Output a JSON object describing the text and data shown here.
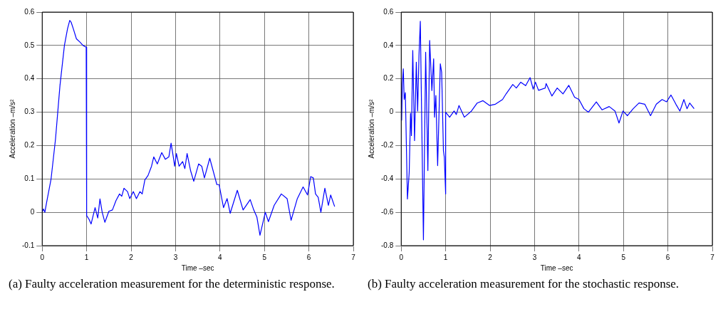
{
  "chart_data": [
    {
      "type": "line",
      "xlabel": "Time –sec",
      "ylabel": "Acceleration –m/s²",
      "annotations": [
        "(a) Faulty acceleration measurement for the deterministic response."
      ],
      "xlim": [
        0,
        7
      ],
      "xticks": [
        0,
        1,
        2,
        3,
        4,
        5,
        6,
        7
      ],
      "ylim": [
        -0.1,
        0.6
      ],
      "yticks": [
        -0.1,
        0,
        0.1,
        0.2,
        0.3,
        0.4,
        0.5,
        0.6
      ],
      "grid": true,
      "line_style": "solid",
      "series": [
        {
          "color": "#0000ff",
          "x": [
            0,
            0.03,
            0.06,
            0.1,
            0.2,
            0.3,
            0.4,
            0.5,
            0.57,
            0.62,
            0.65,
            0.7,
            0.77,
            0.85,
            0.92,
            0.99,
            1.0,
            1.0,
            1.05,
            1.1,
            1.19,
            1.25,
            1.3,
            1.35,
            1.41,
            1.5,
            1.58,
            1.66,
            1.74,
            1.79,
            1.84,
            1.92,
            1.97,
            2.05,
            2.12,
            2.2,
            2.25,
            2.31,
            2.38,
            2.46,
            2.51,
            2.59,
            2.69,
            2.77,
            2.85,
            2.9,
            2.95,
            2.98,
            3.02,
            3.08,
            3.16,
            3.21,
            3.26,
            3.34,
            3.41,
            3.52,
            3.59,
            3.65,
            3.77,
            3.93,
            3.98,
            4.08,
            4.16,
            4.23,
            4.39,
            4.52,
            4.68,
            4.76,
            4.83,
            4.9,
            5.02,
            5.09,
            5.22,
            5.38,
            5.51,
            5.6,
            5.74,
            5.87,
            5.97,
            6.04,
            6.1,
            6.15,
            6.21,
            6.27,
            6.36,
            6.44,
            6.49,
            6.58
          ],
          "values": [
            0,
            0.01,
            0,
            0.03,
            0.1,
            0.22,
            0.38,
            0.5,
            0.55,
            0.575,
            0.57,
            0.55,
            0.52,
            0.51,
            0.5,
            0.495,
            0.495,
            -0.01,
            -0.02,
            -0.035,
            0.014,
            -0.017,
            0.04,
            0,
            -0.03,
            0.003,
            0.007,
            0.035,
            0.055,
            0.048,
            0.072,
            0.062,
            0.041,
            0.062,
            0.041,
            0.062,
            0.055,
            0.097,
            0.11,
            0.138,
            0.166,
            0.145,
            0.179,
            0.159,
            0.166,
            0.207,
            0.166,
            0.138,
            0.176,
            0.138,
            0.152,
            0.131,
            0.176,
            0.124,
            0.093,
            0.145,
            0.138,
            0.103,
            0.162,
            0.083,
            0.083,
            0.014,
            0.041,
            -0.003,
            0.066,
            0.007,
            0.038,
            0.007,
            -0.014,
            -0.069,
            0,
            -0.028,
            0.021,
            0.055,
            0.041,
            -0.024,
            0.041,
            0.076,
            0.052,
            0.107,
            0.103,
            0.055,
            0.045,
            0,
            0.072,
            0.021,
            0.052,
            0.017
          ]
        }
      ]
    },
    {
      "type": "line",
      "xlabel": "Time –sec",
      "ylabel": "Acceleration –m/s²",
      "annotations": [
        "(b) Faulty acceleration measurement for the stochastic response."
      ],
      "xlim": [
        0,
        7
      ],
      "xticks": [
        0,
        1,
        2,
        3,
        4,
        5,
        6,
        7
      ],
      "ylim": [
        -0.8,
        0.6
      ],
      "yticks": [
        -0.8,
        -0.6,
        -0.4,
        -0.2,
        0,
        0.2,
        0.4,
        0.6
      ],
      "grid": true,
      "line_style": "solid",
      "series": [
        {
          "color": "#0000ff",
          "x": [
            0.01,
            0.026,
            0.047,
            0.067,
            0.093,
            0.14,
            0.18,
            0.21,
            0.23,
            0.26,
            0.3,
            0.34,
            0.37,
            0.4,
            0.43,
            0.5,
            0.55,
            0.6,
            0.64,
            0.69,
            0.73,
            0.75,
            0.78,
            0.82,
            0.88,
            0.91,
            0.95,
            0.97,
            1.0,
            1.0,
            1.09,
            1.19,
            1.24,
            1.3,
            1.42,
            1.58,
            1.71,
            1.84,
            1.99,
            2.12,
            2.28,
            2.36,
            2.51,
            2.59,
            2.69,
            2.8,
            2.9,
            2.97,
            3.02,
            3.09,
            3.24,
            3.26,
            3.39,
            3.51,
            3.64,
            3.77,
            3.9,
            4.0,
            4.11,
            4.21,
            4.39,
            4.52,
            4.68,
            4.81,
            4.9,
            4.99,
            5.09,
            5.22,
            5.35,
            5.48,
            5.61,
            5.74,
            5.87,
            5.97,
            6.07,
            6.18,
            6.27,
            6.36,
            6.43,
            6.49,
            6.59
          ],
          "values": [
            -0.05,
            0.17,
            0.26,
            0.076,
            0.117,
            -0.52,
            -0.36,
            -0.007,
            -0.14,
            0.37,
            -0.17,
            0.3,
            0.007,
            0.34,
            0.545,
            -0.765,
            0.36,
            -0.35,
            0.43,
            0.13,
            0.32,
            -0.03,
            0.1,
            -0.32,
            0.29,
            0.24,
            -0.23,
            -0.27,
            -0.49,
            0,
            -0.03,
            0.007,
            -0.014,
            0.04,
            -0.03,
            0.007,
            0.055,
            0.069,
            0.04,
            0.048,
            0.076,
            0.11,
            0.166,
            0.145,
            0.18,
            0.159,
            0.207,
            0.138,
            0.18,
            0.131,
            0.145,
            0.172,
            0.097,
            0.145,
            0.11,
            0.161,
            0.09,
            0.076,
            0.021,
            0,
            0.062,
            0.014,
            0.034,
            0.007,
            -0.065,
            0.007,
            -0.021,
            0.021,
            0.055,
            0.048,
            -0.021,
            0.048,
            0.076,
            0.062,
            0.103,
            0.048,
            0.007,
            0.076,
            0.021,
            0.055,
            0.021
          ]
        }
      ]
    }
  ]
}
